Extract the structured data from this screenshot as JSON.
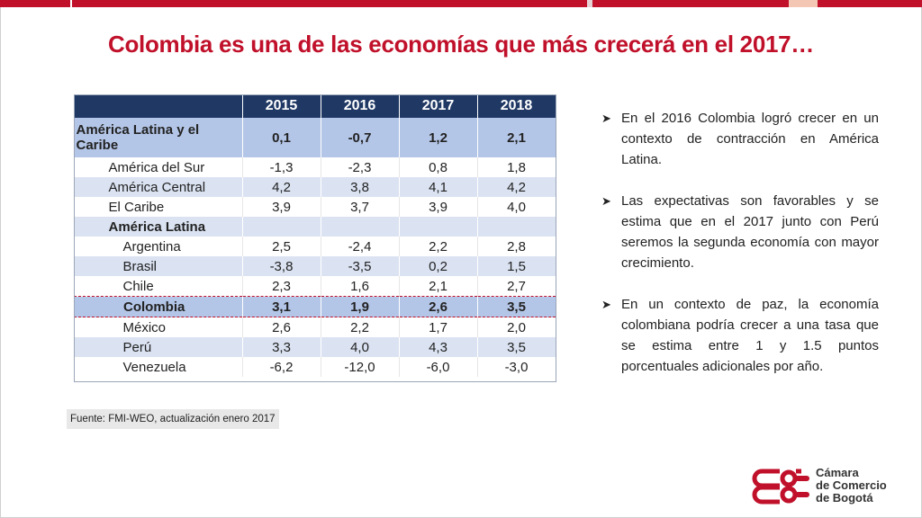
{
  "header": {
    "colors": [
      "#c0102a",
      "#c0102a",
      "#e6d2d5",
      "#c0102a",
      "#f4c7b5",
      "#c0102a"
    ]
  },
  "title": "Colombia es una de las economías que más crecerá en el 2017…",
  "table": {
    "columns": [
      "",
      "2015",
      "2016",
      "2017",
      "2018"
    ],
    "rows": [
      {
        "label": "América Latina y el Caribe",
        "values": [
          "0,1",
          "-0,7",
          "1,2",
          "2,1"
        ]
      },
      {
        "label": "América del Sur",
        "values": [
          "-1,3",
          "-2,3",
          "0,8",
          "1,8"
        ]
      },
      {
        "label": "América Central",
        "values": [
          "4,2",
          "3,8",
          "4,1",
          "4,2"
        ]
      },
      {
        "label": "El Caribe",
        "values": [
          "3,9",
          "3,7",
          "3,9",
          "4,0"
        ]
      },
      {
        "label": "América Latina",
        "values": [
          "",
          "",
          "",
          ""
        ]
      },
      {
        "label": "Argentina",
        "values": [
          "2,5",
          "-2,4",
          "2,2",
          "2,8"
        ]
      },
      {
        "label": "Brasil",
        "values": [
          "-3,8",
          "-3,5",
          "0,2",
          "1,5"
        ]
      },
      {
        "label": "Chile",
        "values": [
          "2,3",
          "1,6",
          "2,1",
          "2,7"
        ]
      },
      {
        "label": "Colombia",
        "values": [
          "3,1",
          "1,9",
          "2,6",
          "3,5"
        ]
      },
      {
        "label": "México",
        "values": [
          "2,6",
          "2,2",
          "1,7",
          "2,0"
        ]
      },
      {
        "label": "Perú",
        "values": [
          "3,3",
          "4,0",
          "4,3",
          "3,5"
        ]
      },
      {
        "label": "Venezuela",
        "values": [
          "-6,2",
          "-12,0",
          "-6,0",
          "-3,0"
        ]
      }
    ]
  },
  "source": "Fuente: FMI-WEO, actualización enero 2017",
  "bullets": [
    "En el 2016 Colombia logró crecer en un contexto de contracción en América Latina.",
    "Las expectativas son favorables y se estima que en el 2017 junto con Perú seremos la segunda economía con mayor crecimiento.",
    "En un contexto de paz, la economía colombiana podría crecer a una tasa que se estima entre 1 y 1.5 puntos porcentuales adicionales por año."
  ],
  "logo": {
    "line1": "Cámara",
    "line2": "de Comercio",
    "line3": "de Bogotá",
    "icon": "ccb-logo-icon",
    "color": "#c0102a"
  }
}
